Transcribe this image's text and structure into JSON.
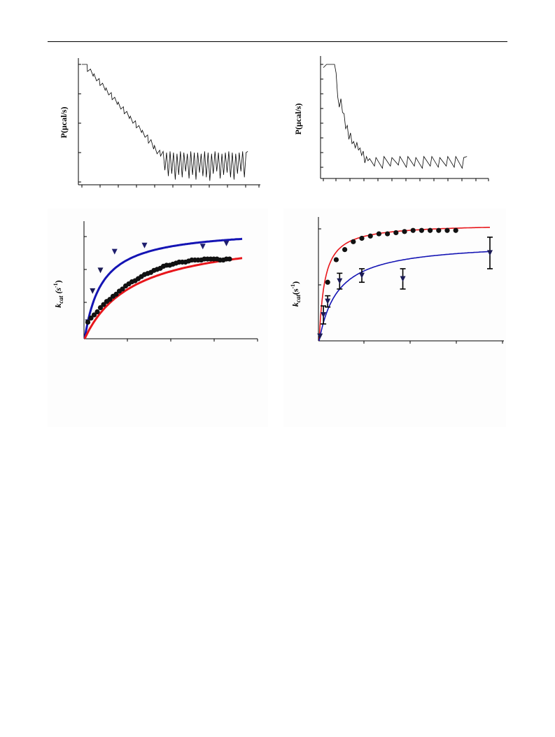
{
  "colors": {
    "red": "#e8161b",
    "blue": "#1414b4",
    "marker": "#111111",
    "trace": "#000000"
  },
  "chart_data": [
    {
      "id": "itc-left",
      "type": "line",
      "ylabel": "P(µcal/s)",
      "xlim": [
        0,
        100
      ],
      "ylim": [
        0,
        100
      ],
      "series": [
        {
          "description_trace": "raw heat-rate trace with staircase injections then oscillating baseline",
          "x": [
            0,
            1.5,
            3,
            3.2,
            5,
            6.5,
            7,
            8.5,
            10,
            10.5,
            12,
            13.5,
            14,
            15.5,
            17,
            17.5,
            19,
            20.5,
            21,
            22.5,
            24,
            24.5,
            26,
            27.5,
            28,
            29.5,
            31,
            31.5,
            33,
            34.5,
            35,
            36.5,
            38,
            38.5,
            40,
            41.5,
            42,
            43.5,
            45,
            45.5,
            47,
            48,
            49,
            50,
            51,
            52,
            53,
            54,
            55,
            56,
            57,
            58,
            59,
            60,
            61,
            62,
            63,
            64,
            65,
            66,
            67,
            68,
            69,
            70,
            71,
            72,
            73,
            74,
            75,
            76,
            77,
            78,
            79,
            80,
            81,
            82,
            83,
            84,
            85,
            86,
            87,
            88,
            89,
            90,
            91,
            92,
            93,
            94,
            95,
            96
          ],
          "y": [
            100,
            100,
            100,
            94,
            96,
            90,
            92,
            86,
            88,
            82,
            84,
            78,
            80,
            74,
            76,
            70,
            72,
            66,
            68,
            62,
            64,
            58,
            60,
            54,
            56,
            50,
            52,
            46,
            48,
            42,
            44,
            38,
            40,
            33,
            36,
            28,
            31,
            24,
            27,
            22,
            26,
            10,
            25,
            5,
            26,
            7,
            25,
            2,
            24,
            6,
            26,
            4,
            25,
            9,
            24,
            3,
            26,
            6,
            25,
            2,
            25,
            8,
            24,
            5,
            26,
            4,
            25,
            1,
            24,
            7,
            26,
            9,
            25,
            3,
            24,
            6,
            25,
            8,
            26,
            4,
            25,
            2,
            24,
            7,
            25,
            9,
            26,
            4,
            25,
            26
          ]
        }
      ]
    },
    {
      "id": "itc-right",
      "type": "line",
      "ylabel": "P(µcal/s)",
      "xlim": [
        0,
        100
      ],
      "ylim": [
        0,
        100
      ],
      "series": [
        {
          "description_trace": "raw heat-rate trace",
          "x": [
            0,
            2,
            5,
            7,
            8,
            9,
            10,
            11,
            12,
            13,
            14,
            15,
            16,
            17,
            18,
            19,
            20,
            21,
            22,
            23,
            24,
            25,
            26,
            27,
            28,
            29,
            32,
            33,
            37,
            38,
            42,
            43,
            47,
            48,
            52,
            53,
            57,
            58,
            62,
            63,
            67,
            68,
            72,
            73,
            77,
            78,
            82,
            83,
            87,
            88,
            90
          ],
          "y": [
            97,
            100,
            100,
            100,
            92,
            70,
            60,
            68,
            55,
            54,
            40,
            43,
            30,
            36,
            26,
            28,
            22,
            27,
            20,
            22,
            15,
            19,
            8,
            14,
            10,
            12,
            5,
            13,
            3,
            14,
            5,
            13,
            6,
            14,
            4,
            14,
            5,
            13,
            3,
            14,
            5,
            14,
            4,
            13,
            5,
            14,
            4,
            14,
            3,
            13,
            14
          ]
        }
      ]
    },
    {
      "id": "kcat-left",
      "type": "scatter",
      "ylabel_main": "k",
      "ylabel_sub": "cat",
      "ylabel_unit": " (s",
      "ylabel_sup": "-1",
      "ylabel_close": ")",
      "xlim": [
        0,
        100
      ],
      "ylim": [
        0,
        100
      ],
      "series": [
        {
          "color": "blue",
          "marker": "triangle-down",
          "x": [
            2,
            5,
            10,
            19,
            38,
            75,
            90
          ],
          "y": [
            16,
            46,
            66,
            84,
            90,
            89,
            92
          ]
        },
        {
          "color": "blue",
          "fit": true,
          "vmax": 107,
          "km": 11
        },
        {
          "color": "black",
          "marker": "circle",
          "x": [
            2,
            4,
            6,
            8,
            10,
            12,
            14,
            16,
            18,
            20,
            22,
            24,
            26,
            28,
            30,
            32,
            34,
            36,
            38,
            40,
            42,
            44,
            46,
            48,
            50,
            52,
            54,
            56,
            58,
            60,
            62,
            64,
            66,
            68,
            70,
            72,
            74,
            76,
            78,
            80,
            82,
            84,
            86,
            88,
            90,
            92
          ],
          "y": [
            16,
            20,
            23,
            26,
            30,
            33,
            36,
            38,
            41,
            43,
            46,
            48,
            51,
            53,
            55,
            56,
            58,
            60,
            62,
            63,
            64,
            66,
            67,
            68,
            70,
            71,
            71,
            72,
            73,
            74,
            74,
            74,
            75,
            76,
            76,
            76,
            76,
            77,
            77,
            77,
            77,
            77,
            76,
            76,
            77,
            77
          ]
        },
        {
          "color": "red",
          "fit": true,
          "vmax": 102,
          "km": 31
        }
      ]
    },
    {
      "id": "kcat-right",
      "type": "scatter",
      "ylabel_main": "k",
      "ylabel_sub": "cat",
      "ylabel_unit": "(s",
      "ylabel_sup": "-1",
      "ylabel_close": ")",
      "xlim": [
        0,
        100
      ],
      "ylim": [
        0,
        100
      ],
      "series": [
        {
          "color": "black",
          "marker": "circle",
          "x": [
            5,
            10,
            15,
            20,
            25,
            30,
            35,
            40,
            45,
            50,
            55,
            60,
            65,
            70,
            75,
            80
          ],
          "y": [
            52,
            72,
            81,
            88,
            91,
            93,
            95,
            95,
            96,
            97,
            98,
            98,
            98,
            98,
            98,
            98
          ]
        },
        {
          "color": "red",
          "fit": true,
          "vmax": 104,
          "km": 3.2
        },
        {
          "color": "blue",
          "marker": "triangle-down",
          "errorbars": true,
          "x": [
            0.5,
            2.5,
            5,
            12,
            25,
            49,
            100
          ],
          "y": [
            4,
            23,
            35,
            53,
            58,
            55,
            78
          ],
          "err": [
            0,
            8,
            5,
            7,
            6,
            9,
            14
          ]
        },
        {
          "color": "blue",
          "fit": true,
          "vmax": 88,
          "km": 11
        }
      ]
    }
  ]
}
